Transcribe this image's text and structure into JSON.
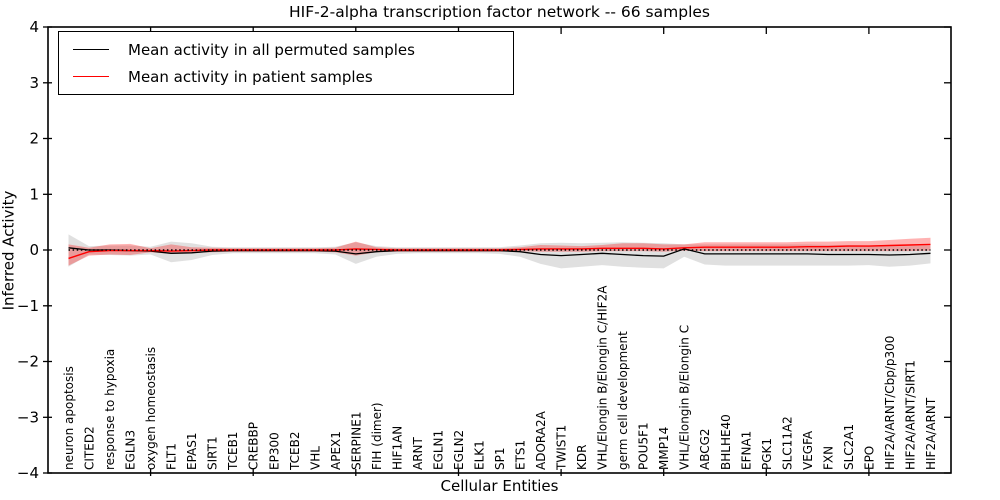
{
  "title": "HIF-2-alpha transcription factor network -- 66 samples",
  "ylabel": "Inferred Activity",
  "xlabel": "Cellular Entities",
  "legend": [
    {
      "label": "Mean activity in all permuted samples",
      "color": "#000000"
    },
    {
      "label": "Mean activity in patient samples",
      "color": "#ff0000"
    }
  ],
  "colors": {
    "permuted_line": "#000000",
    "permuted_band": "#aaaaaa",
    "patient_line": "#ff0000",
    "patient_band": "#ff0000",
    "baseline": "#000000",
    "axis": "#000000"
  },
  "chart_data": {
    "type": "line",
    "title": "HIF-2-alpha transcription factor network -- 66 samples",
    "xlabel": "Cellular Entities",
    "ylabel": "Inferred Activity",
    "ylim": [
      -4,
      4
    ],
    "xlim": [
      0,
      44
    ],
    "grid": false,
    "legend_position": "upper left",
    "yticks": [
      {
        "v": -4,
        "label": "−4"
      },
      {
        "v": -3,
        "label": "−3"
      },
      {
        "v": -2,
        "label": "−2"
      },
      {
        "v": -1,
        "label": "−1"
      },
      {
        "v": 0,
        "label": "0"
      },
      {
        "v": 1,
        "label": "1"
      },
      {
        "v": 2,
        "label": "2"
      },
      {
        "v": 3,
        "label": "3"
      },
      {
        "v": 4,
        "label": "4"
      }
    ],
    "xticks": [
      5,
      10,
      15,
      20,
      25,
      30,
      35,
      40
    ],
    "baseline": {
      "value": 0,
      "style": "dotted"
    },
    "categories": [
      "neuron apoptosis",
      "CITED2",
      "response to hypoxia",
      "EGLN3",
      "oxygen homeostasis",
      "FLT1",
      "EPAS1",
      "SIRT1",
      "TCEB1",
      "CREBBP",
      "EP300",
      "TCEB2",
      "VHL",
      "APEX1",
      "SERPINE1",
      "FIH (dimer)",
      "HIF1AN",
      "ARNT",
      "EGLN1",
      "EGLN2",
      "ELK1",
      "SP1",
      "ETS1",
      "ADORA2A",
      "TWIST1",
      "KDR",
      "VHL/Elongin B/Elongin C/HIF2A",
      "germ cell development",
      "POU5F1",
      "MMP14",
      "VHL/Elongin B/Elongin C",
      "ABCG2",
      "BHLHE40",
      "EFNA1",
      "PGK1",
      "SLC11A2",
      "VEGFA",
      "FXN",
      "SLC2A1",
      "EPO",
      "HIF2A/ARNT/Cbp/p300",
      "HIF2A/ARNT/SIRT1",
      "HIF2A/ARNT"
    ],
    "series": [
      {
        "name": "Mean activity in all permuted samples",
        "values": [
          0.04,
          0.0,
          0.0,
          -0.01,
          -0.02,
          -0.06,
          -0.05,
          -0.02,
          -0.01,
          -0.01,
          -0.01,
          -0.01,
          -0.01,
          -0.02,
          -0.07,
          -0.03,
          -0.01,
          -0.01,
          -0.01,
          -0.01,
          -0.01,
          -0.01,
          -0.03,
          -0.08,
          -0.1,
          -0.08,
          -0.06,
          -0.08,
          -0.1,
          -0.11,
          0.02,
          -0.07,
          -0.07,
          -0.07,
          -0.07,
          -0.07,
          -0.07,
          -0.08,
          -0.08,
          -0.08,
          -0.09,
          -0.08,
          -0.06
        ],
        "band_upper": [
          0.28,
          0.07,
          0.08,
          0.08,
          0.06,
          0.15,
          0.12,
          0.06,
          0.05,
          0.05,
          0.05,
          0.05,
          0.05,
          0.06,
          0.14,
          0.07,
          0.05,
          0.05,
          0.05,
          0.05,
          0.05,
          0.05,
          0.08,
          0.12,
          0.13,
          0.12,
          0.13,
          0.14,
          0.13,
          0.12,
          0.1,
          0.1,
          0.1,
          0.1,
          0.1,
          0.1,
          0.1,
          0.09,
          0.09,
          0.08,
          0.07,
          0.07,
          0.08
        ],
        "band_lower": [
          -0.3,
          -0.08,
          -0.09,
          -0.1,
          -0.08,
          -0.22,
          -0.18,
          -0.09,
          -0.06,
          -0.06,
          -0.06,
          -0.06,
          -0.06,
          -0.08,
          -0.25,
          -0.12,
          -0.07,
          -0.06,
          -0.06,
          -0.06,
          -0.06,
          -0.07,
          -0.12,
          -0.25,
          -0.33,
          -0.3,
          -0.27,
          -0.3,
          -0.32,
          -0.33,
          -0.12,
          -0.26,
          -0.28,
          -0.28,
          -0.28,
          -0.28,
          -0.28,
          -0.28,
          -0.28,
          -0.27,
          -0.3,
          -0.28,
          -0.24
        ]
      },
      {
        "name": "Mean activity in patient samples",
        "values": [
          -0.15,
          -0.03,
          -0.01,
          -0.01,
          -0.01,
          -0.02,
          -0.01,
          0.0,
          0.0,
          0.0,
          0.0,
          0.0,
          0.0,
          0.0,
          0.02,
          0.01,
          0.0,
          0.0,
          0.0,
          0.0,
          0.0,
          0.0,
          0.01,
          0.02,
          0.02,
          0.02,
          0.03,
          0.03,
          0.03,
          0.02,
          0.04,
          0.05,
          0.05,
          0.05,
          0.05,
          0.05,
          0.06,
          0.06,
          0.07,
          0.07,
          0.08,
          0.09,
          0.1
        ],
        "band_upper": [
          0.1,
          0.04,
          0.1,
          0.11,
          0.03,
          0.1,
          0.05,
          0.04,
          0.03,
          0.03,
          0.03,
          0.03,
          0.03,
          0.04,
          0.15,
          0.05,
          0.03,
          0.03,
          0.03,
          0.03,
          0.03,
          0.03,
          0.05,
          0.09,
          0.08,
          0.07,
          0.09,
          0.12,
          0.12,
          0.1,
          0.1,
          0.14,
          0.14,
          0.14,
          0.14,
          0.14,
          0.15,
          0.15,
          0.16,
          0.16,
          0.18,
          0.2,
          0.22
        ],
        "band_lower": [
          -0.28,
          -0.1,
          -0.08,
          -0.09,
          -0.04,
          -0.07,
          -0.05,
          -0.04,
          -0.03,
          -0.03,
          -0.03,
          -0.03,
          -0.03,
          -0.04,
          -0.1,
          -0.04,
          -0.03,
          -0.03,
          -0.03,
          -0.03,
          -0.03,
          -0.03,
          -0.02,
          -0.03,
          -0.03,
          -0.03,
          -0.02,
          -0.02,
          -0.02,
          -0.03,
          -0.01,
          -0.02,
          -0.02,
          -0.02,
          -0.02,
          -0.02,
          -0.02,
          -0.02,
          -0.02,
          -0.02,
          -0.02,
          -0.02,
          -0.01
        ]
      }
    ]
  }
}
